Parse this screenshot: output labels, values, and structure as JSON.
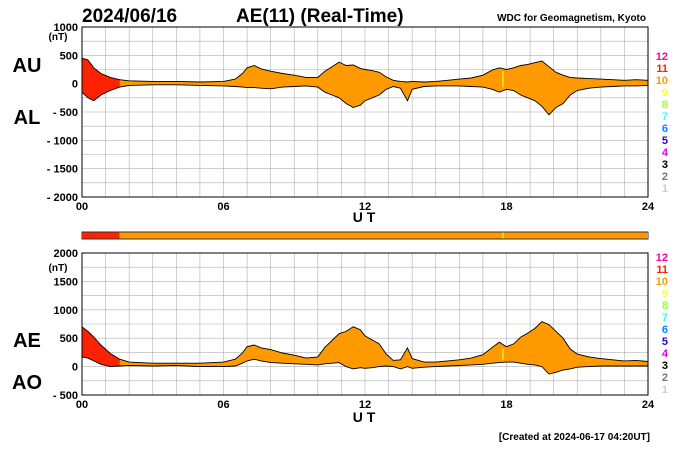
{
  "header": {
    "date": "2024/06/16",
    "title": "AE(11) (Real-Time)",
    "source": "WDC for Geomagnetism, Kyoto"
  },
  "footer": {
    "created": "[Created at 2024-06-17 04:20UT]"
  },
  "colors": {
    "fill_normal": "#ff9900",
    "fill_high": "#ff2200",
    "mark_yellow": "#ffee00",
    "grid": "#b0b0b0",
    "axis": "#000000"
  },
  "station_legend": [
    {
      "label": "12",
      "color": "#ff00aa"
    },
    {
      "label": "11",
      "color": "#ff2200"
    },
    {
      "label": "10",
      "color": "#ff9900"
    },
    {
      "label": "9",
      "color": "#ffff33"
    },
    {
      "label": "8",
      "color": "#99ff33"
    },
    {
      "label": "7",
      "color": "#33ffff"
    },
    {
      "label": "6",
      "color": "#0088ff"
    },
    {
      "label": "5",
      "color": "#3300cc"
    },
    {
      "label": "4",
      "color": "#dd00dd"
    },
    {
      "label": "3",
      "color": "#000000"
    },
    {
      "label": "2",
      "color": "#777777"
    },
    {
      "label": "1",
      "color": "#cccccc"
    }
  ],
  "coverage_bar": {
    "segments": [
      {
        "from": 0,
        "to": 1.6,
        "color": "#ff2200"
      },
      {
        "from": 1.6,
        "to": 24,
        "color": "#ff9900"
      }
    ],
    "marks": [
      {
        "at": 17.85,
        "color": "#ffee00"
      }
    ]
  },
  "chart_data": [
    {
      "type": "area",
      "id": "au_al",
      "unit": "(nT)",
      "upper_series_label": "AU",
      "lower_series_label": "AL",
      "xlabel": "U T",
      "xlim": [
        0,
        24
      ],
      "ylim": [
        -2000,
        1000
      ],
      "yticks": [
        {
          "value": 1000,
          "label": "1000"
        },
        {
          "value": 500,
          "label": "500"
        },
        {
          "value": 0,
          "label": "0"
        },
        {
          "value": -500,
          "label": "- 500"
        },
        {
          "value": -1000,
          "label": "- 1000"
        },
        {
          "value": -1500,
          "label": "- 1500"
        },
        {
          "value": -2000,
          "label": "- 2000"
        }
      ],
      "xticks": [
        {
          "value": 0,
          "label": "00"
        },
        {
          "value": 6,
          "label": "06"
        },
        {
          "value": 12,
          "label": "12"
        },
        {
          "value": 18,
          "label": "18"
        },
        {
          "value": 24,
          "label": "24"
        }
      ],
      "grid": true,
      "highlight": [
        {
          "from": 0,
          "to": 1.6
        }
      ],
      "mark": [
        17.85
      ],
      "x": [
        0,
        0.25,
        0.5,
        0.8,
        1.2,
        1.6,
        2,
        3,
        4,
        5,
        6,
        6.5,
        6.8,
        7,
        7.3,
        7.6,
        8,
        8.5,
        9,
        9.5,
        10,
        10.3,
        10.6,
        10.9,
        11.2,
        11.5,
        11.8,
        12,
        12.3,
        12.6,
        12.9,
        13.2,
        13.5,
        13.8,
        14,
        14.5,
        15,
        15.5,
        16,
        16.5,
        17,
        17.4,
        17.7,
        18,
        18.3,
        18.6,
        18.9,
        19.2,
        19.5,
        19.8,
        20.1,
        20.4,
        20.7,
        21,
        21.5,
        22,
        22.5,
        23,
        23.5,
        24
      ],
      "upper": [
        450,
        420,
        280,
        180,
        110,
        70,
        50,
        40,
        40,
        30,
        40,
        80,
        180,
        280,
        320,
        260,
        220,
        180,
        150,
        110,
        110,
        220,
        300,
        380,
        320,
        330,
        270,
        250,
        230,
        200,
        120,
        60,
        40,
        30,
        40,
        30,
        40,
        60,
        80,
        100,
        150,
        240,
        280,
        250,
        280,
        320,
        340,
        370,
        400,
        300,
        200,
        150,
        110,
        100,
        90,
        80,
        70,
        60,
        70,
        60
      ],
      "lower": [
        -150,
        -250,
        -300,
        -200,
        -120,
        -60,
        -30,
        -20,
        -20,
        -30,
        -40,
        -50,
        -60,
        -70,
        -70,
        -80,
        -90,
        -60,
        -50,
        -40,
        -60,
        -150,
        -200,
        -250,
        -350,
        -420,
        -380,
        -300,
        -250,
        -200,
        -100,
        -50,
        -80,
        -300,
        -100,
        -50,
        -40,
        -40,
        -40,
        -50,
        -60,
        -100,
        -150,
        -100,
        -120,
        -200,
        -250,
        -300,
        -400,
        -550,
        -420,
        -350,
        -200,
        -120,
        -80,
        -60,
        -50,
        -40,
        -40,
        -30
      ]
    },
    {
      "type": "area",
      "id": "ae_ao",
      "unit": "(nT)",
      "upper_series_label": "AE",
      "lower_series_label": "AO",
      "xlabel": "U T",
      "xlim": [
        0,
        24
      ],
      "ylim": [
        -500,
        2000
      ],
      "yticks": [
        {
          "value": 2000,
          "label": "2000"
        },
        {
          "value": 1500,
          "label": "1500"
        },
        {
          "value": 1000,
          "label": "1000"
        },
        {
          "value": 500,
          "label": "500"
        },
        {
          "value": 0,
          "label": "0"
        },
        {
          "value": -500,
          "label": "- 500"
        }
      ],
      "xticks": [
        {
          "value": 0,
          "label": "00"
        },
        {
          "value": 6,
          "label": "06"
        },
        {
          "value": 12,
          "label": "12"
        },
        {
          "value": 18,
          "label": "18"
        },
        {
          "value": 24,
          "label": "24"
        }
      ],
      "grid": true,
      "highlight": [
        {
          "from": 0,
          "to": 1.6
        }
      ],
      "mark": [
        17.85
      ],
      "x": [
        0,
        0.25,
        0.5,
        0.8,
        1.2,
        1.6,
        2,
        3,
        4,
        5,
        6,
        6.5,
        6.8,
        7,
        7.3,
        7.6,
        8,
        8.5,
        9,
        9.5,
        10,
        10.3,
        10.6,
        10.9,
        11.2,
        11.5,
        11.8,
        12,
        12.3,
        12.6,
        12.9,
        13.2,
        13.5,
        13.8,
        14,
        14.5,
        15,
        15.5,
        16,
        16.5,
        17,
        17.4,
        17.7,
        18,
        18.3,
        18.6,
        18.9,
        19.2,
        19.5,
        19.8,
        20.1,
        20.4,
        20.7,
        21,
        21.5,
        22,
        22.5,
        23,
        23.5,
        24
      ],
      "upper": [
        700,
        620,
        520,
        380,
        230,
        130,
        80,
        60,
        60,
        60,
        80,
        130,
        240,
        350,
        380,
        330,
        300,
        240,
        200,
        150,
        170,
        340,
        460,
        580,
        620,
        700,
        650,
        540,
        470,
        400,
        220,
        110,
        120,
        330,
        140,
        80,
        80,
        100,
        120,
        150,
        210,
        340,
        430,
        350,
        400,
        520,
        590,
        670,
        790,
        740,
        620,
        500,
        310,
        220,
        170,
        140,
        120,
        100,
        110,
        90
      ],
      "lower": [
        170,
        150,
        100,
        40,
        0,
        10,
        20,
        10,
        20,
        0,
        0,
        10,
        60,
        100,
        130,
        100,
        70,
        60,
        50,
        40,
        30,
        50,
        60,
        70,
        0,
        -40,
        -20,
        -30,
        -20,
        0,
        10,
        0,
        -40,
        0,
        -30,
        -10,
        0,
        10,
        20,
        30,
        40,
        60,
        70,
        80,
        80,
        60,
        40,
        30,
        0,
        -130,
        -100,
        -60,
        -40,
        -10,
        0,
        10,
        10,
        10,
        10,
        10
      ]
    }
  ]
}
